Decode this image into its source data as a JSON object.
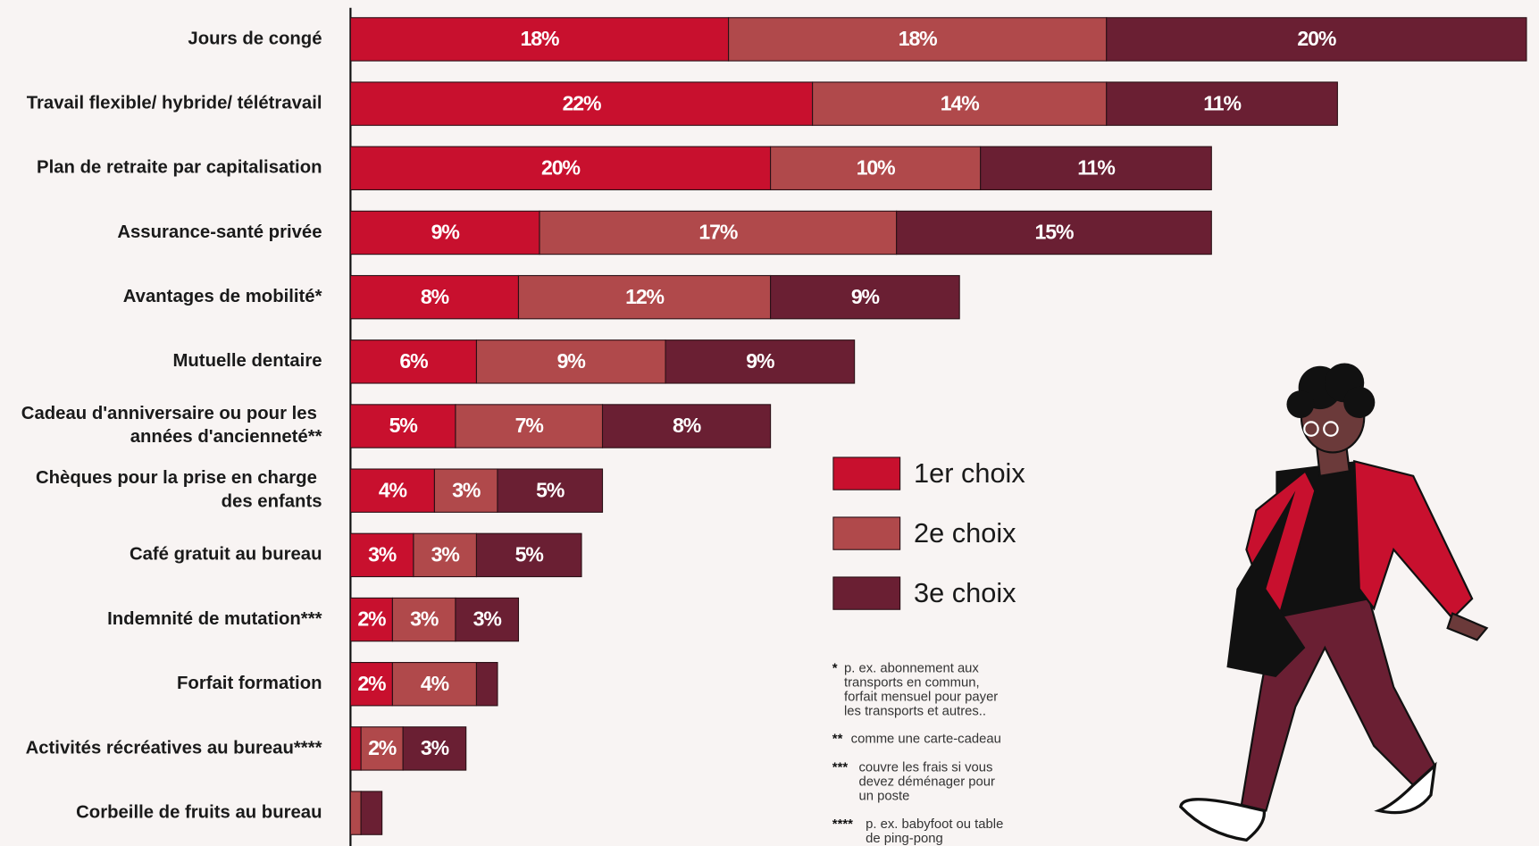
{
  "chart_data": {
    "type": "stacked-bar-horizontal",
    "categories": [
      "Jours de congé",
      "Travail flexible/ hybride/ télétravail",
      "Plan de retraite par capitalisation",
      "Assurance-santé privée",
      "Avantages de mobilité*",
      "Mutuelle dentaire",
      "Cadeau d'anniversaire ou pour les années d'ancienneté**",
      "Chèques pour la prise en charge des enfants",
      "Café gratuit au bureau",
      "Indemnité de mutation***",
      "Forfait formation",
      "Activités récréatives au bureau****",
      "Corbeille de fruits au bureau"
    ],
    "series": [
      {
        "name": "1er choix",
        "color": "#c8102e",
        "values": [
          18,
          22,
          20,
          9,
          8,
          6,
          5,
          4,
          3,
          2,
          2,
          0.5,
          0
        ],
        "value_labels": [
          "18%",
          "22%",
          "20%",
          "9%",
          "8%",
          "6%",
          "5%",
          "4%",
          "3%",
          "2%",
          "2%",
          null,
          null
        ]
      },
      {
        "name": "2e choix",
        "color": "#b0494b",
        "values": [
          18,
          14,
          10,
          17,
          12,
          9,
          7,
          3,
          3,
          3,
          4,
          2,
          0.5
        ],
        "value_labels": [
          "18%",
          "14%",
          "10%",
          "17%",
          "12%",
          "9%",
          "7%",
          "3%",
          "3%",
          "3%",
          "4%",
          "2%",
          null
        ]
      },
      {
        "name": "3e choix",
        "color": "#6a1f33",
        "values": [
          20,
          11,
          11,
          15,
          9,
          9,
          8,
          5,
          5,
          3,
          1,
          3,
          1
        ],
        "value_labels": [
          "20%",
          "11%",
          "11%",
          "15%",
          "9%",
          "9%",
          "8%",
          "5%",
          "5%",
          "3%",
          null,
          "3%",
          null
        ]
      }
    ],
    "notes": [
      {
        "marker": "*",
        "lines": [
          "p. ex. abonnement aux",
          "transports en commun,",
          "forfait mensuel pour payer",
          "les transports et autres.."
        ]
      },
      {
        "marker": "**",
        "lines": [
          "comme une carte-cadeau"
        ]
      },
      {
        "marker": "***",
        "lines": [
          "couvre les frais si vous",
          "devez déménager pour",
          "un poste"
        ]
      },
      {
        "marker": "****",
        "lines": [
          "p. ex. babyfoot ou table",
          "de ping-pong"
        ]
      }
    ]
  }
}
